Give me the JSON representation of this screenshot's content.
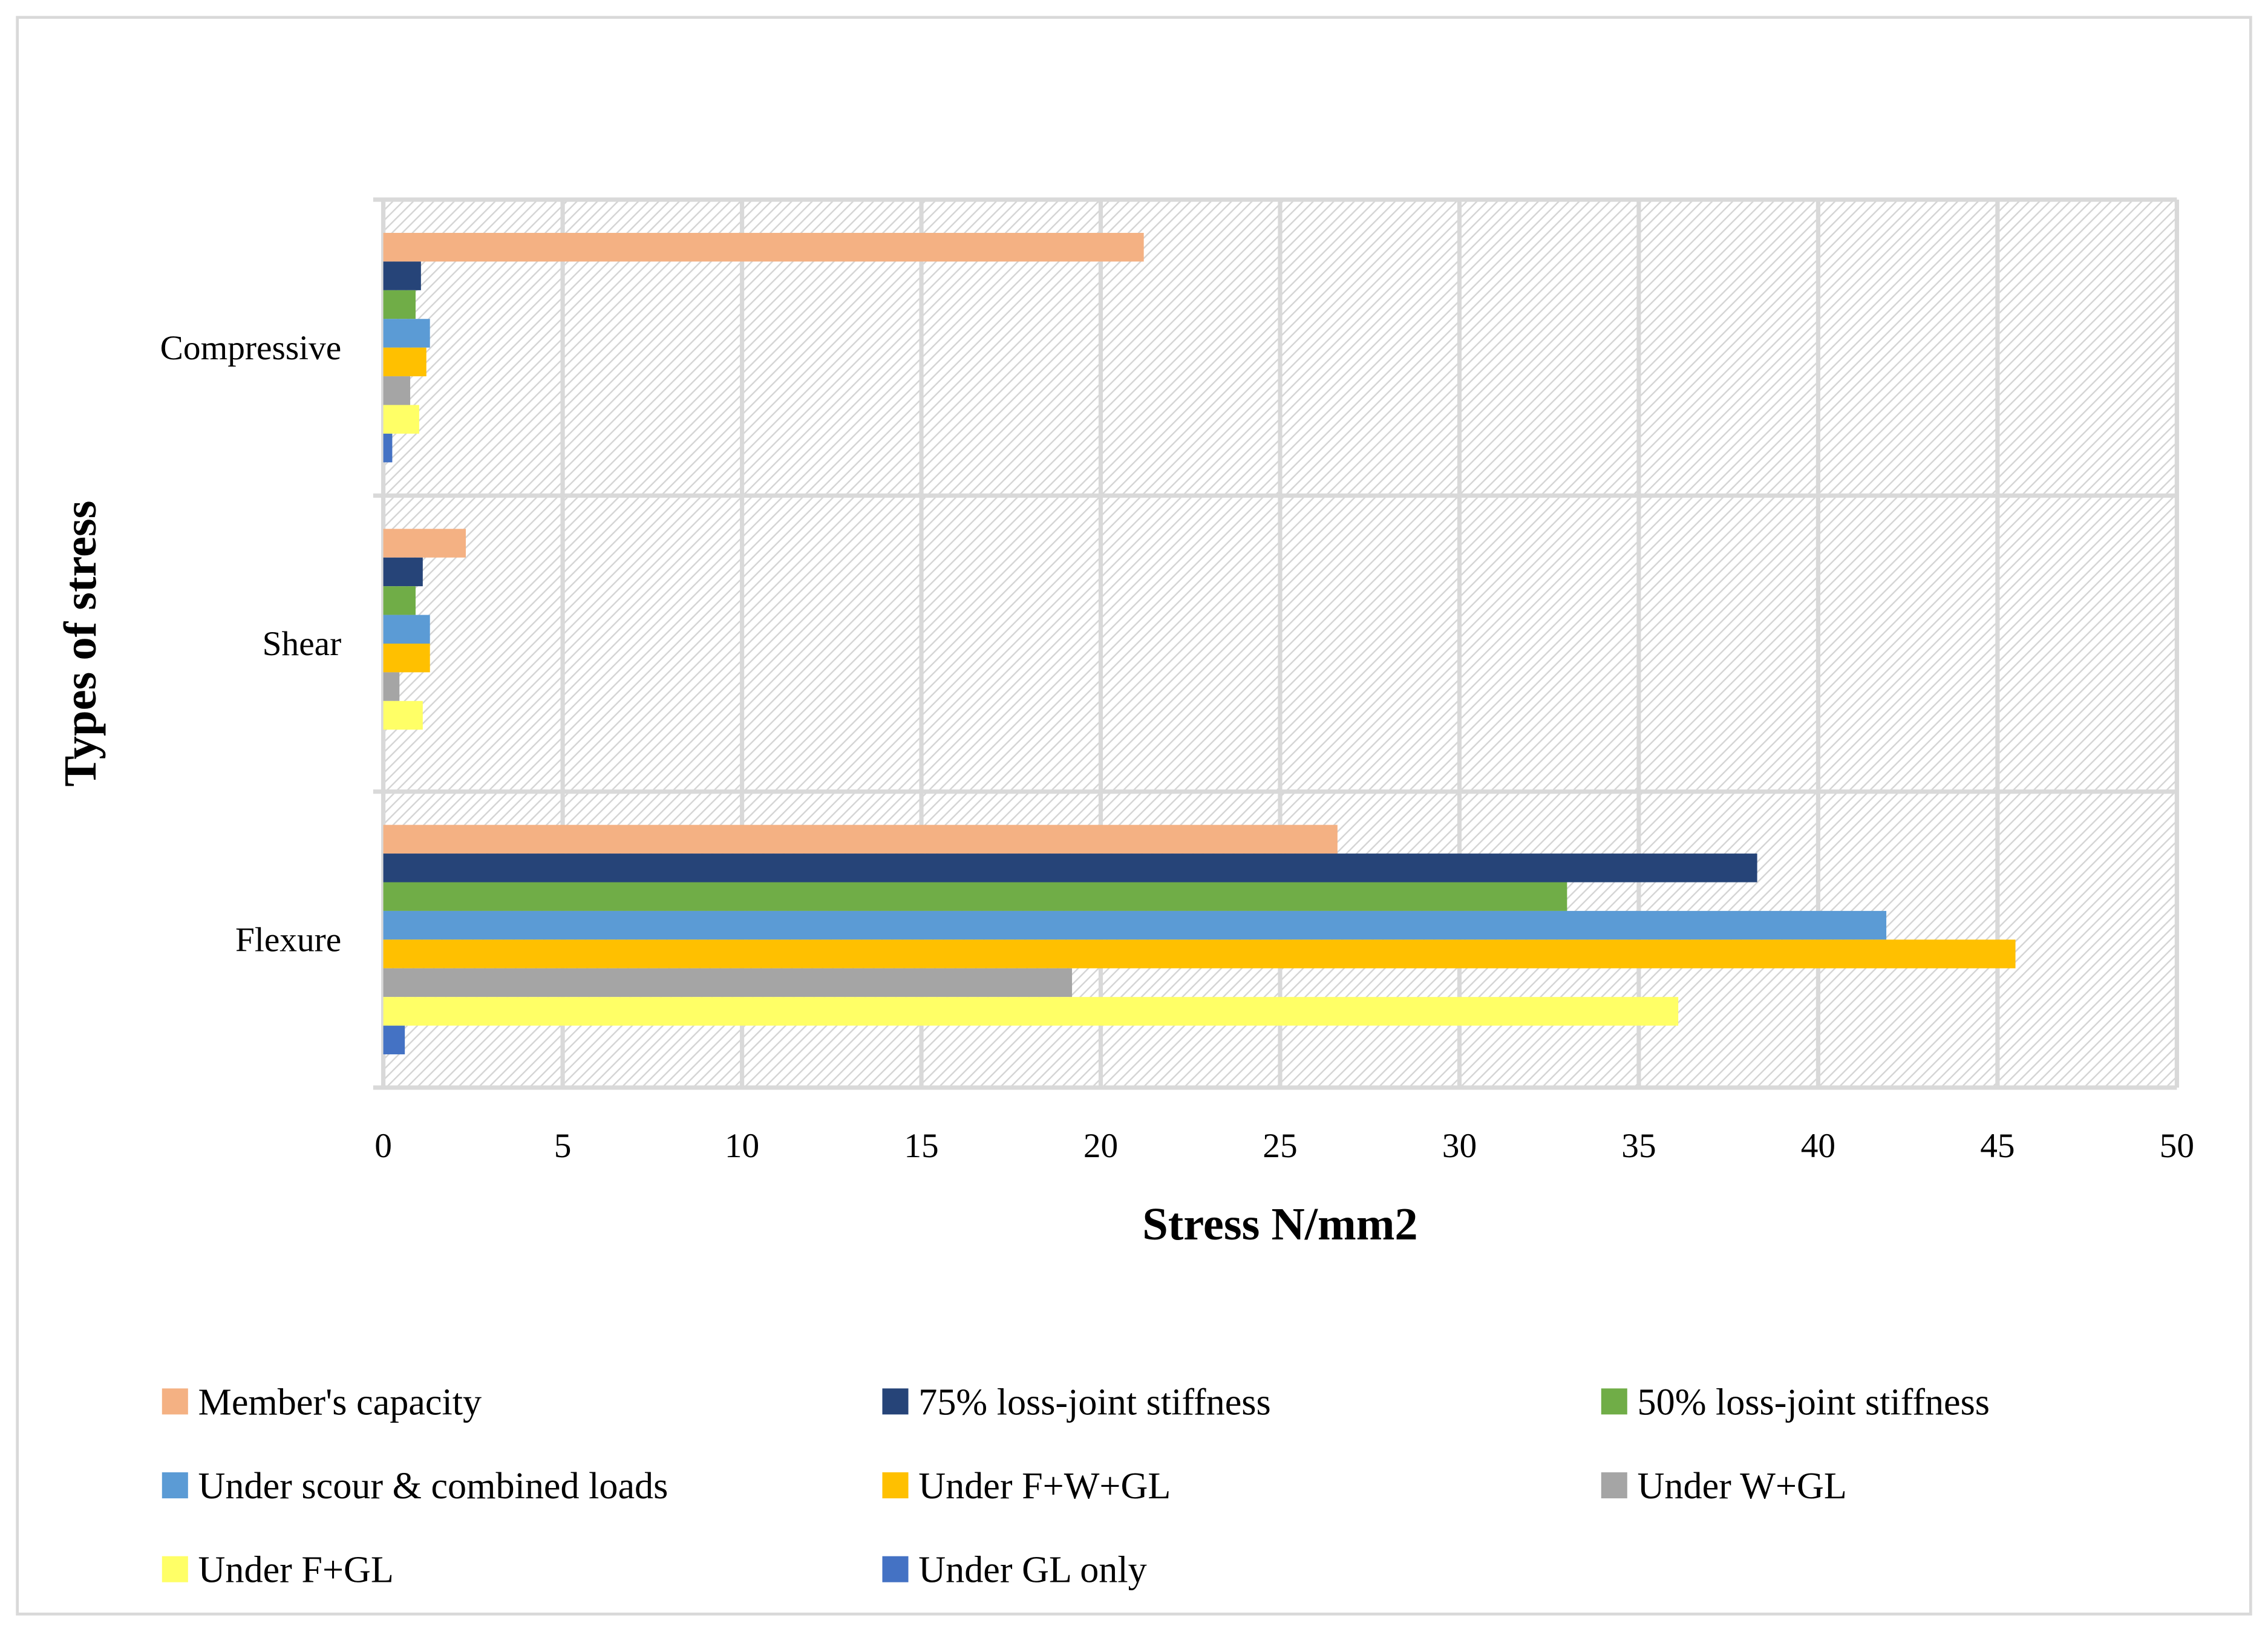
{
  "chart_data": {
    "type": "bar",
    "orientation": "horizontal",
    "title": "",
    "xlabel": "Stress N/mm2",
    "ylabel": "Types of stress",
    "xlim": [
      0,
      50
    ],
    "x_ticks": [
      "0",
      "5",
      "10",
      "15",
      "20",
      "25",
      "30",
      "35",
      "40",
      "45",
      "50"
    ],
    "grid": true,
    "legend_position": "bottom",
    "categories": [
      "Flexure",
      "Shear",
      "Compressive"
    ],
    "series": [
      {
        "name": "Member's capacity",
        "color": "#F4B183",
        "values": [
          26.6,
          2.3,
          21.2
        ]
      },
      {
        "name": "75% loss-joint stiffness",
        "color": "#264478",
        "values": [
          38.3,
          1.1,
          1.05
        ]
      },
      {
        "name": "50% loss-joint stiffness",
        "color": "#70AD47",
        "values": [
          33.0,
          0.9,
          0.9
        ]
      },
      {
        "name": " Under scour & combined loads",
        "color": "#5B9BD5",
        "values": [
          41.9,
          1.3,
          1.3
        ]
      },
      {
        "name": " Under F+W+GL",
        "color": "#FFC000",
        "values": [
          45.5,
          1.3,
          1.2
        ]
      },
      {
        "name": "Under W+GL",
        "color": "#A5A5A5",
        "values": [
          19.2,
          0.45,
          0.75
        ]
      },
      {
        "name": "Under F+GL",
        "color": "#FFFF66",
        "values": [
          36.1,
          1.1,
          1.0
        ]
      },
      {
        "name": "Under GL only",
        "color": "#4472C4",
        "values": [
          0.6,
          0,
          0.25
        ]
      }
    ]
  }
}
